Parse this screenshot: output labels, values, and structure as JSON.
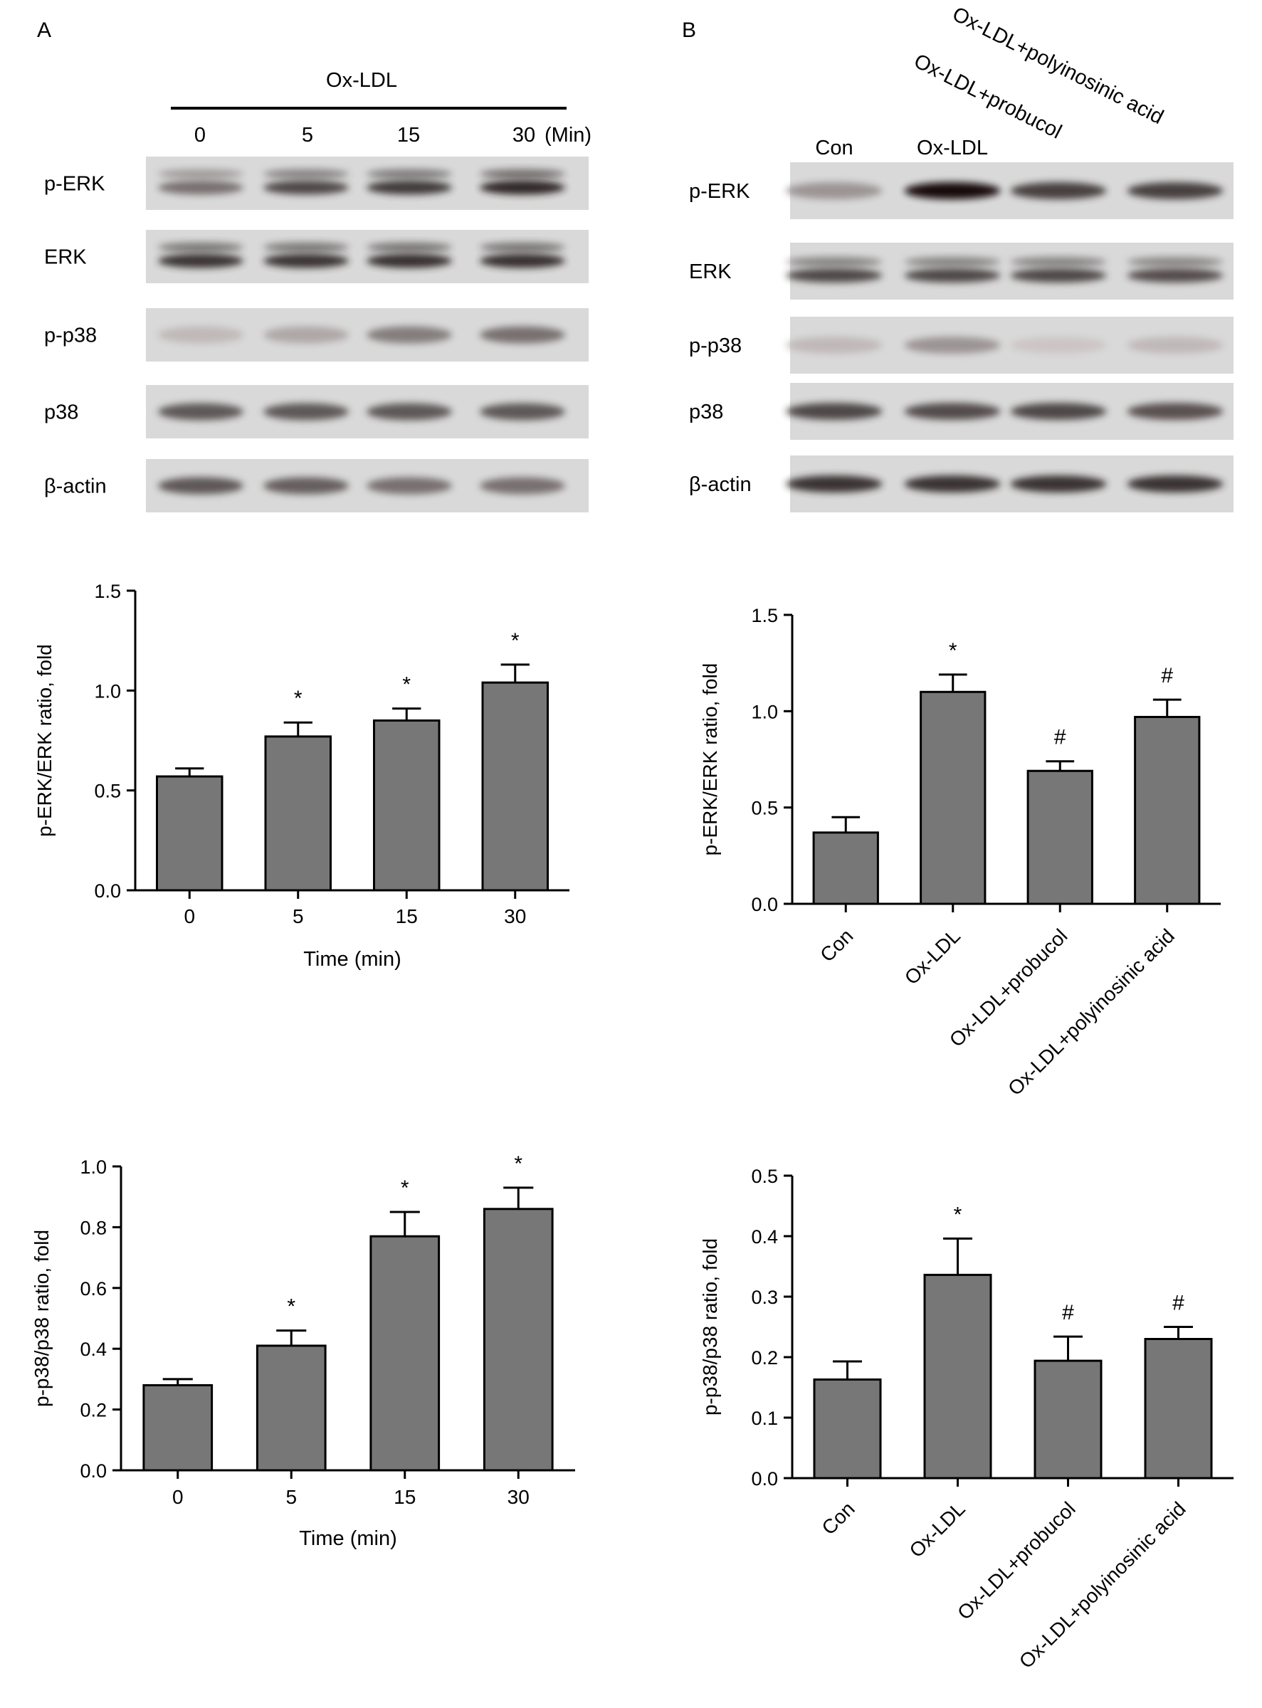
{
  "panels": {
    "a": {
      "label": "A",
      "treatment": "Ox-LDL",
      "lanes": [
        "0",
        "5",
        "15",
        "30"
      ],
      "lane_unit": "(Min)",
      "blots": [
        {
          "name": "p-ERK",
          "intensity": [
            0.55,
            0.72,
            0.78,
            0.85
          ],
          "double": true
        },
        {
          "name": "ERK",
          "intensity": [
            0.8,
            0.8,
            0.82,
            0.82
          ],
          "double": true
        },
        {
          "name": "p-p38",
          "intensity": [
            0.25,
            0.32,
            0.5,
            0.55
          ],
          "double": false
        },
        {
          "name": "p38",
          "intensity": [
            0.65,
            0.65,
            0.65,
            0.65
          ],
          "double": false
        },
        {
          "name": "β-actin",
          "intensity": [
            0.65,
            0.62,
            0.55,
            0.55
          ],
          "double": false
        }
      ]
    },
    "b": {
      "label": "B",
      "lanes": [
        "Con",
        "Ox-LDL",
        "Ox-LDL+probucol",
        "Ox-LDL+polyinosinic acid"
      ],
      "blots": [
        {
          "name": "p-ERK",
          "intensity": [
            0.4,
            0.95,
            0.75,
            0.75
          ],
          "double": false
        },
        {
          "name": "ERK",
          "intensity": [
            0.72,
            0.72,
            0.72,
            0.7
          ],
          "double": true
        },
        {
          "name": "p-p38",
          "intensity": [
            0.25,
            0.4,
            0.2,
            0.25
          ],
          "double": false
        },
        {
          "name": "p38",
          "intensity": [
            0.72,
            0.7,
            0.72,
            0.68
          ],
          "double": false
        },
        {
          "name": "β-actin",
          "intensity": [
            0.8,
            0.8,
            0.8,
            0.8
          ],
          "double": false
        }
      ]
    }
  },
  "chart_data": [
    {
      "id": "a1",
      "type": "bar",
      "categories": [
        "0",
        "5",
        "15",
        "30"
      ],
      "values": [
        0.57,
        0.77,
        0.85,
        1.04
      ],
      "errors": [
        0.04,
        0.07,
        0.06,
        0.09
      ],
      "marks": [
        "",
        "*",
        "*",
        "*"
      ],
      "xlabel": "Time (min)",
      "ylabel": "p-ERK/ERK ratio, fold",
      "ylim": [
        0,
        1.5
      ],
      "yticks": [
        "0.0",
        "0.5",
        "1.0",
        "1.5"
      ],
      "bar_color": "#777777"
    },
    {
      "id": "a2",
      "type": "bar",
      "categories": [
        "0",
        "5",
        "15",
        "30"
      ],
      "values": [
        0.28,
        0.41,
        0.77,
        0.86
      ],
      "errors": [
        0.02,
        0.05,
        0.08,
        0.07
      ],
      "marks": [
        "",
        "*",
        "*",
        "*"
      ],
      "xlabel": "Time (min)",
      "ylabel": "p-p38/p38 ratio, fold",
      "ylim": [
        0,
        1.0
      ],
      "yticks": [
        "0.0",
        "0.2",
        "0.4",
        "0.6",
        "0.8",
        "1.0"
      ],
      "bar_color": "#777777"
    },
    {
      "id": "b1",
      "type": "bar",
      "categories": [
        "Con",
        "Ox-LDL",
        "Ox-LDL+probucol",
        "Ox-LDL+polyinosinic acid"
      ],
      "values": [
        0.37,
        1.1,
        0.69,
        0.97
      ],
      "errors": [
        0.08,
        0.09,
        0.05,
        0.09
      ],
      "marks": [
        "",
        "*",
        "#",
        "#"
      ],
      "xlabel": "",
      "ylabel": "p-ERK/ERK ratio, fold",
      "ylim": [
        0,
        1.5
      ],
      "yticks": [
        "0.0",
        "0.5",
        "1.0",
        "1.5"
      ],
      "bar_color": "#777777"
    },
    {
      "id": "b2",
      "type": "bar",
      "categories": [
        "Con",
        "Ox-LDL",
        "Ox-LDL+probucol",
        "Ox-LDL+polyinosinic acid"
      ],
      "values": [
        0.163,
        0.336,
        0.194,
        0.23
      ],
      "errors": [
        0.03,
        0.06,
        0.04,
        0.02
      ],
      "marks": [
        "",
        "*",
        "#",
        "#"
      ],
      "xlabel": "",
      "ylabel": "p-p38/p38 ratio, fold",
      "ylim": [
        0,
        0.5
      ],
      "yticks": [
        "0.0",
        "0.1",
        "0.2",
        "0.3",
        "0.4",
        "0.5"
      ],
      "bar_color": "#777777"
    }
  ]
}
